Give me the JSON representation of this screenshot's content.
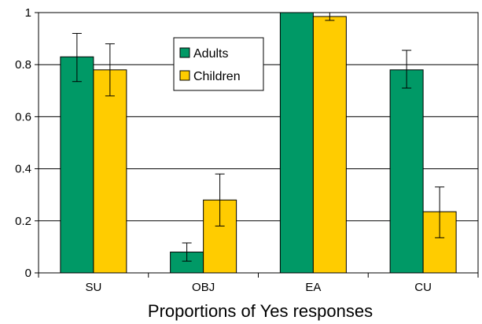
{
  "chart_data": {
    "type": "bar",
    "title": "",
    "xlabel": "Proportions of Yes responses",
    "ylabel": "",
    "categories": [
      "SU",
      "OBJ",
      "EA",
      "CU"
    ],
    "ylim": [
      0,
      1
    ],
    "yticks": [
      "0",
      "0.2",
      "0.4",
      "0.6",
      "0.8",
      "1"
    ],
    "ytick_values": [
      0,
      0.2,
      0.4,
      0.6,
      0.8,
      1
    ],
    "grid": true,
    "legend_position": "top-center",
    "series": [
      {
        "name": "Adults",
        "color": "#009966",
        "values": [
          0.83,
          0.08,
          1.0,
          0.78
        ],
        "err_low": [
          0.735,
          0.045,
          1.0,
          0.71
        ],
        "err_high": [
          0.92,
          0.115,
          1.0,
          0.855
        ]
      },
      {
        "name": "Children",
        "color": "#ffcc00",
        "values": [
          0.78,
          0.28,
          0.985,
          0.235
        ],
        "err_low": [
          0.68,
          0.18,
          0.97,
          0.135
        ],
        "err_high": [
          0.88,
          0.38,
          1.0,
          0.33
        ]
      }
    ]
  }
}
